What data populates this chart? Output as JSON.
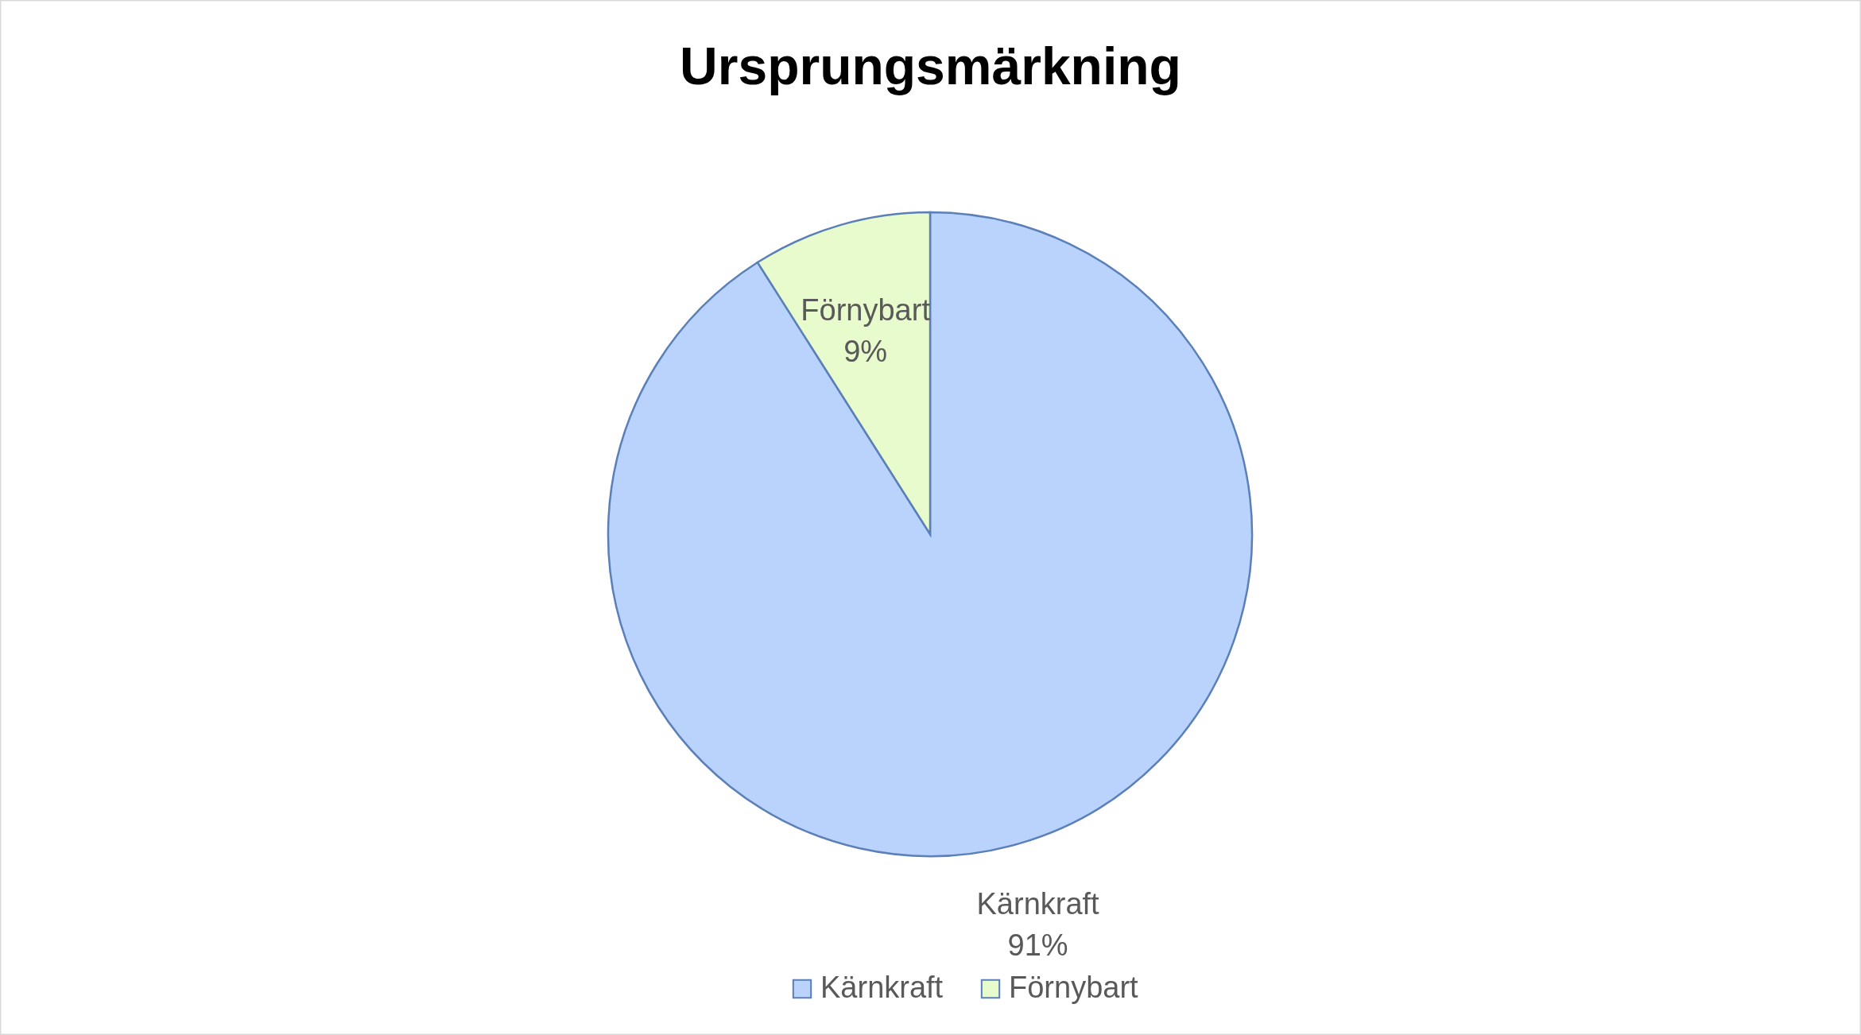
{
  "chart_data": {
    "type": "pie",
    "title": "Ursprungsmärkning",
    "categories": [
      "Kärnkraft",
      "Förnybart"
    ],
    "values": [
      91,
      9
    ],
    "value_labels": [
      "91%",
      "9%"
    ],
    "colors": [
      "#b9d3fc",
      "#e8fbcc"
    ],
    "legend": "bottom"
  }
}
